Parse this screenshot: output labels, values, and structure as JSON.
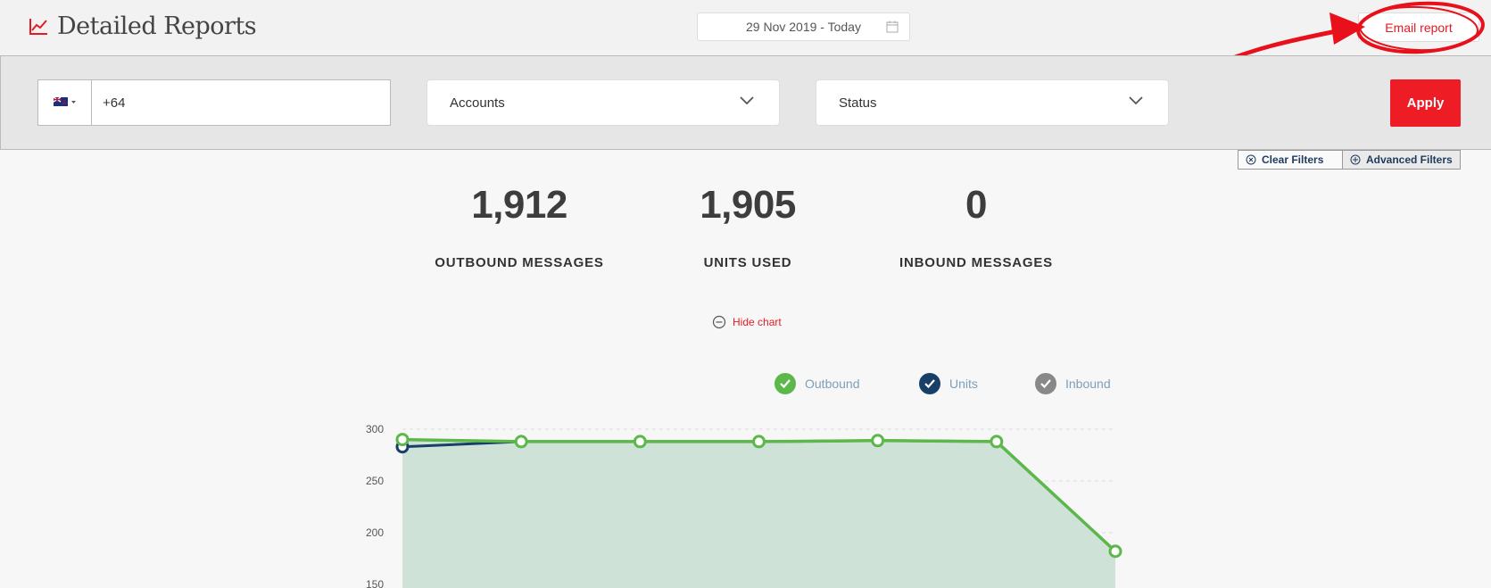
{
  "header": {
    "title": "Detailed Reports",
    "date_range": "29 Nov 2019 - Today",
    "email_label": "Email report"
  },
  "filters": {
    "phone_value": "+64",
    "accounts_label": "Accounts",
    "status_label": "Status",
    "apply_label": "Apply",
    "clear_label": "Clear Filters",
    "advanced_label": "Advanced Filters"
  },
  "stats": [
    {
      "value": "1,912",
      "label": "OUTBOUND MESSAGES"
    },
    {
      "value": "1,905",
      "label": "UNITS USED"
    },
    {
      "value": "0",
      "label": "INBOUND MESSAGES"
    }
  ],
  "hide_chart_label": "Hide chart",
  "colors": {
    "accent": "#e31b23",
    "outbound": "#5cb84a",
    "units": "#173f67",
    "inbound": "#888888"
  },
  "chart_data": {
    "type": "line",
    "legend": [
      "Outbound",
      "Units",
      "Inbound"
    ],
    "y_ticks": [
      300,
      250,
      200,
      150
    ],
    "ylim": [
      150,
      300
    ],
    "series": [
      {
        "name": "Outbound",
        "values": [
          290,
          288,
          288,
          288,
          289,
          288,
          182
        ]
      },
      {
        "name": "Units",
        "values": [
          283,
          288,
          288,
          288,
          289,
          288,
          182
        ]
      }
    ]
  }
}
